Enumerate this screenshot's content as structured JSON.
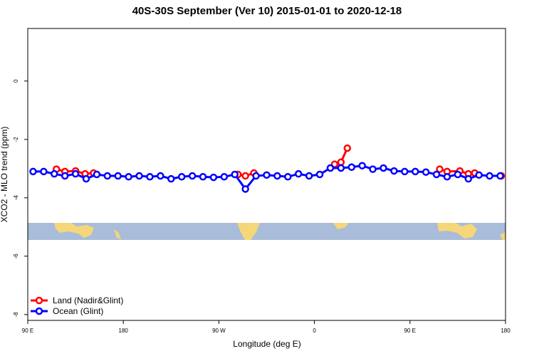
{
  "chart_data": {
    "type": "line",
    "title": "40S-30S September (Ver 10)   2015-01-01 to 2020-12-18",
    "x_label": "Longitude (deg E)",
    "y_label": "XCO2 - MLO trend (ppm)",
    "xlim": [
      90,
      540
    ],
    "xticks": [
      {
        "value": 90,
        "label": "90 E"
      },
      180,
      {
        "value": 270,
        "label": "90 W"
      },
      {
        "value": 360,
        "label": "0"
      },
      {
        "value": 450,
        "label": "90 E"
      },
      {
        "value": 540,
        "label": "180"
      }
    ],
    "ylim": [
      -8.2,
      1.8
    ],
    "yticks": [
      -8,
      -6,
      -4,
      -2,
      0
    ],
    "legend": "bottom-left",
    "series": [
      {
        "name": "Land (Nadir&Glint)",
        "color": "#ff0000",
        "x": [
          117,
          125,
          135,
          144,
          152,
          null,
          288,
          295,
          303,
          null,
          379,
          385,
          391,
          null,
          478,
          485,
          497,
          505,
          511,
          null,
          536
        ],
        "values": [
          -3.02,
          -3.1,
          -3.08,
          -3.18,
          -3.15,
          null,
          -3.2,
          -3.25,
          -3.15,
          null,
          -2.85,
          -2.78,
          -2.3,
          null,
          -3.02,
          -3.1,
          -3.08,
          -3.18,
          -3.15,
          null,
          -3.25
        ]
      },
      {
        "name": "Ocean (Glint)",
        "color": "#0000ff",
        "x": [
          95,
          105,
          115,
          125,
          135,
          145,
          155,
          165,
          175,
          185,
          195,
          205,
          215,
          225,
          235,
          245,
          255,
          265,
          275,
          285,
          295,
          305,
          315,
          325,
          335,
          345,
          355,
          365,
          375,
          385,
          395,
          405,
          415,
          425,
          435,
          445,
          455,
          465,
          475,
          485,
          495,
          505,
          515,
          525,
          535
        ],
        "values": [
          -3.1,
          -3.1,
          -3.18,
          -3.25,
          -3.18,
          -3.35,
          -3.2,
          -3.25,
          -3.25,
          -3.28,
          -3.25,
          -3.28,
          -3.25,
          -3.35,
          -3.28,
          -3.25,
          -3.28,
          -3.3,
          -3.28,
          -3.2,
          -3.7,
          -3.25,
          -3.22,
          -3.25,
          -3.28,
          -3.18,
          -3.25,
          -3.2,
          -2.98,
          -2.98,
          -2.95,
          -2.9,
          -3.02,
          -2.98,
          -3.08,
          -3.1,
          -3.1,
          -3.12,
          -3.2,
          -3.28,
          -3.2,
          -3.35,
          -3.22,
          -3.25,
          -3.25
        ]
      }
    ]
  }
}
